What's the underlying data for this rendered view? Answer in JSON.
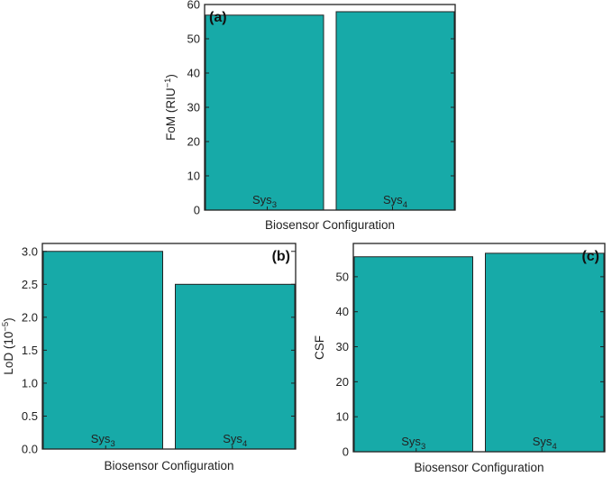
{
  "chart_data": [
    {
      "panel": "(a)",
      "type": "bar",
      "categories": [
        "Sys",
        "Sys"
      ],
      "category_subscripts": [
        "3",
        "4"
      ],
      "values": [
        56.9,
        57.9
      ],
      "xlabel": "Biosensor Configuration",
      "ylabel": "FoM (RIU",
      "ylabel_superscript": "−1",
      "ylabel_suffix": ")",
      "ylim": [
        0,
        60
      ],
      "yticks": [
        0,
        10,
        20,
        30,
        40,
        50,
        60
      ],
      "ytick_labels": [
        "0",
        "10",
        "20",
        "30",
        "40",
        "50",
        "60"
      ],
      "tag_position": "top-left"
    },
    {
      "panel": "(b)",
      "type": "bar",
      "categories": [
        "Sys",
        "Sys"
      ],
      "category_subscripts": [
        "3",
        "4"
      ],
      "values": [
        3.0,
        2.5
      ],
      "xlabel": "Biosensor Configuration",
      "ylabel": "LoD (10",
      "ylabel_superscript": "−5",
      "ylabel_suffix": ")",
      "ylim": [
        0,
        3.12
      ],
      "yticks": [
        0,
        0.5,
        1.0,
        1.5,
        2.0,
        2.5,
        3.0
      ],
      "ytick_labels": [
        "0.0",
        "0.5",
        "1.0",
        "1.5",
        "2.0",
        "2.5",
        "3.0"
      ],
      "tag_position": "top-right"
    },
    {
      "panel": "(c)",
      "type": "bar",
      "categories": [
        "Sys",
        "Sys"
      ],
      "category_subscripts": [
        "3",
        "4"
      ],
      "values": [
        55.7,
        56.7
      ],
      "xlabel": "Biosensor Configuration",
      "ylabel": "CSF",
      "ylabel_superscript": "",
      "ylabel_suffix": "",
      "ylim": [
        0,
        59.5
      ],
      "yticks": [
        0,
        10,
        20,
        30,
        40,
        50
      ],
      "ytick_labels": [
        "0",
        "10",
        "20",
        "30",
        "40",
        "50"
      ],
      "tag_position": "top-right"
    }
  ],
  "colors": {
    "bar_fill": "#17aaa8",
    "bar_stroke": "#222222",
    "frame": "#222222"
  }
}
